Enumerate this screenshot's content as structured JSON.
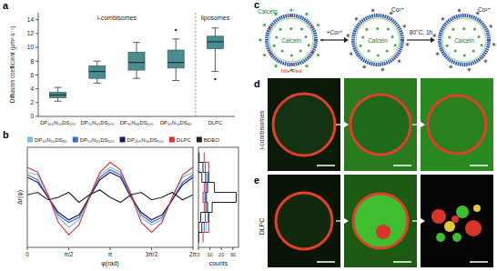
{
  "chart_data": [
    {
      "type": "box",
      "title": "a",
      "ylabel": "Diffusion coefficient (μm²·s⁻¹)",
      "annotations": [
        "i-combisomes",
        "liposomes"
      ],
      "categories": [
        "DP₄₀₀N₅₆DS₁₀₀",
        "DP₅₀N₄₅DS₁₀₀",
        "DP₃₀N₄₈DS₁₀₀",
        "DP₃₀N₅₆DS₈₀",
        "DLPC"
      ],
      "values": [
        {
          "min": 2.2,
          "q1": 2.7,
          "median": 3.1,
          "q3": 3.5,
          "max": 4.2,
          "outliers": []
        },
        {
          "min": 4.8,
          "q1": 5.5,
          "median": 6.5,
          "q3": 7.3,
          "max": 8.0,
          "outliers": []
        },
        {
          "min": 5.5,
          "q1": 6.7,
          "median": 7.8,
          "q3": 9.3,
          "max": 10.7,
          "outliers": []
        },
        {
          "min": 5.2,
          "q1": 7.0,
          "median": 7.8,
          "q3": 9.6,
          "max": 11.2,
          "outliers": [
            12.5
          ]
        },
        {
          "min": 6.5,
          "q1": 9.8,
          "median": 10.8,
          "q3": 11.6,
          "max": 12.8,
          "outliers": [
            5.4
          ]
        }
      ],
      "color": "#4d8c8e",
      "ylim": [
        0,
        15
      ],
      "yticks": [
        0,
        2,
        4,
        6,
        8,
        10,
        12,
        14
      ]
    },
    {
      "type": "line",
      "title": "b",
      "xlabel": "φ(rad)",
      "ylabel": "Δr(φ)",
      "x": [
        0,
        0.393,
        0.785,
        1.178,
        1.571,
        1.963,
        2.356,
        2.749,
        3.142,
        3.534,
        3.927,
        4.32,
        4.712,
        5.105,
        5.498,
        5.89,
        6.283
      ],
      "series": [
        {
          "name": "DP₃₀N₅₆DS₈₀",
          "color": "#7fb8e0",
          "values": [
            0.5,
            0.45,
            0.05,
            -0.4,
            -0.6,
            -0.45,
            0.05,
            0.45,
            0.6,
            0.5,
            0.1,
            -0.4,
            -0.55,
            -0.45,
            0.0,
            0.4,
            0.5
          ]
        },
        {
          "name": "DP₅₀N₄₅DS₁₀₀",
          "color": "#3b6fc4",
          "values": [
            0.45,
            0.35,
            0.0,
            -0.35,
            -0.5,
            -0.4,
            0.0,
            0.4,
            0.55,
            0.45,
            0.05,
            -0.35,
            -0.5,
            -0.4,
            -0.05,
            0.3,
            0.45
          ]
        },
        {
          "name": "DP₄₀₀N₅₆DS₁₀₀",
          "color": "#1a1a5e",
          "values": [
            0.4,
            0.3,
            0.0,
            -0.3,
            -0.45,
            -0.35,
            0.0,
            0.35,
            0.5,
            0.4,
            0.0,
            -0.3,
            -0.45,
            -0.35,
            -0.05,
            0.25,
            0.4
          ]
        },
        {
          "name": "DLPC",
          "color": "#e03030",
          "values": [
            0.6,
            0.5,
            0.05,
            -0.5,
            -0.75,
            -0.55,
            0.0,
            0.5,
            0.7,
            0.55,
            0.05,
            -0.5,
            -0.7,
            -0.5,
            0.0,
            0.45,
            0.6
          ]
        },
        {
          "name": "BDEO",
          "color": "#222222",
          "values": [
            0.05,
            0.1,
            -0.05,
            0.0,
            0.1,
            -0.1,
            0.05,
            0.15,
            0.0,
            -0.1,
            0.05,
            0.1,
            -0.05,
            0.0,
            0.1,
            -0.05,
            0.05
          ]
        }
      ],
      "xlim": [
        0,
        6.2832
      ],
      "xticks": [
        0,
        {
          "value": 1.5708,
          "label": "π/2"
        },
        {
          "value": 3.1416,
          "label": "π"
        },
        {
          "value": 4.7124,
          "label": "3π/2"
        },
        {
          "value": 6.2832,
          "label": "2π"
        }
      ],
      "ylim": [
        -1,
        1
      ],
      "tick_labels": "x",
      "legend": "top"
    },
    {
      "type": "histogram",
      "orientation": "horizontal",
      "xlabel": "counts",
      "bins": [
        -0.9,
        -0.7,
        -0.5,
        -0.3,
        -0.1,
        0.1,
        0.3,
        0.5,
        0.7,
        0.9
      ],
      "series": [
        {
          "color": "#7fb8e0",
          "counts": [
            0,
            7,
            8,
            6,
            5,
            6,
            7,
            9,
            1
          ]
        },
        {
          "color": "#3b6fc4",
          "counts": [
            0,
            5,
            9,
            7,
            6,
            7,
            8,
            6,
            0
          ]
        },
        {
          "color": "#1a1a5e",
          "counts": [
            0,
            3,
            9,
            8,
            7,
            8,
            9,
            4,
            0
          ]
        },
        {
          "color": "#e03030",
          "counts": [
            4,
            9,
            6,
            5,
            4,
            5,
            6,
            9,
            5
          ]
        },
        {
          "color": "#222222",
          "counts": [
            0,
            0,
            2,
            12,
            33,
            14,
            3,
            0,
            0
          ]
        }
      ],
      "xlim": [
        0,
        35
      ],
      "xticks": [
        0,
        10,
        20,
        30
      ],
      "ylim": [
        -1,
        1
      ],
      "tick_labels": "x"
    }
  ],
  "diagram": {
    "title": "c",
    "outer_label": "Calcein",
    "dye_label": "Nile Red",
    "vesicles": [
      {
        "label": "Calcein"
      },
      {
        "label": "Calcein",
        "ion": "Co²⁺"
      },
      {
        "label": "Calcein",
        "ion": "Co²⁺"
      }
    ],
    "steps": [
      "+Co²⁺",
      "80°C, 1h"
    ]
  },
  "micrographs": [
    {
      "title": "d",
      "label": "i-combisomes"
    },
    {
      "title": "e",
      "label": "DLPC"
    }
  ]
}
